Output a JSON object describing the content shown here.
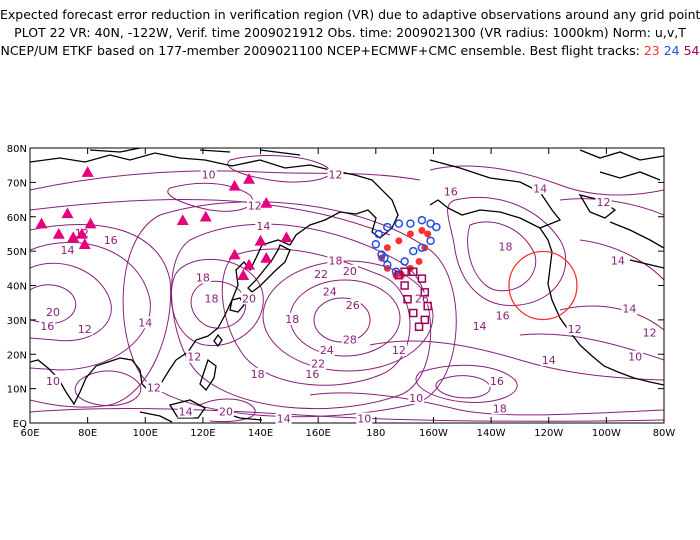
{
  "header": {
    "line1": "Expected forecast error reduction in verification region (VR) due to adaptive observations around any grid point.",
    "line2": "PLOT 22 VR: 40N, -122W, Verif. time 2009021912 Obs. time: 2009021300 (VR radius: 1000km) Norm: u,v,T",
    "line3_text": "NCEP/UM ETKF based on 177-member 2009021100 NCEP+ECMWF+CMC ensemble. Best flight tracks:",
    "track_ids": [
      "23",
      "24",
      "54"
    ]
  },
  "axes": {
    "lat_labels": [
      "80N",
      "70N",
      "60N",
      "50N",
      "40N",
      "30N",
      "20N",
      "10N",
      "EQ"
    ],
    "lon_labels": [
      "60E",
      "80E",
      "100E",
      "120E",
      "140E",
      "160E",
      "180",
      "160W",
      "140W",
      "120W",
      "100W",
      "80W"
    ]
  },
  "map_data": {
    "lon_range": [
      60,
      280
    ],
    "lat_range": [
      0,
      80
    ],
    "contour_values": [
      "10",
      "12",
      "14",
      "16",
      "18",
      "20",
      "22",
      "24",
      "26",
      "28"
    ],
    "contour_labels": [
      {
        "text": "10",
        "lon": 122,
        "lat": 72
      },
      {
        "text": "12",
        "lon": 138,
        "lat": 63
      },
      {
        "text": "14",
        "lon": 141,
        "lat": 57
      },
      {
        "text": "12",
        "lon": 78,
        "lat": 55
      },
      {
        "text": "16",
        "lon": 88,
        "lat": 53
      },
      {
        "text": "14",
        "lon": 73,
        "lat": 50
      },
      {
        "text": "18",
        "lon": 120,
        "lat": 42
      },
      {
        "text": "18",
        "lon": 123,
        "lat": 36
      },
      {
        "text": "20",
        "lon": 136,
        "lat": 36
      },
      {
        "text": "20",
        "lon": 68,
        "lat": 32
      },
      {
        "text": "16",
        "lon": 66,
        "lat": 28
      },
      {
        "text": "12",
        "lon": 79,
        "lat": 27
      },
      {
        "text": "14",
        "lon": 100,
        "lat": 29
      },
      {
        "text": "12",
        "lon": 117,
        "lat": 19
      },
      {
        "text": "10",
        "lon": 68,
        "lat": 12
      },
      {
        "text": "12",
        "lon": 103,
        "lat": 10
      },
      {
        "text": "14",
        "lon": 114,
        "lat": 3
      },
      {
        "text": "18",
        "lon": 139,
        "lat": 14
      },
      {
        "text": "20",
        "lon": 128,
        "lat": 3
      },
      {
        "text": "14",
        "lon": 148,
        "lat": 1
      },
      {
        "text": "18",
        "lon": 151,
        "lat": 30
      },
      {
        "text": "22",
        "lon": 161,
        "lat": 43
      },
      {
        "text": "24",
        "lon": 164,
        "lat": 38
      },
      {
        "text": "26",
        "lon": 172,
        "lat": 34
      },
      {
        "text": "28",
        "lon": 171,
        "lat": 24
      },
      {
        "text": "24",
        "lon": 163,
        "lat": 21
      },
      {
        "text": "22",
        "lon": 160,
        "lat": 17
      },
      {
        "text": "16",
        "lon": 158,
        "lat": 14
      },
      {
        "text": "10",
        "lon": 176,
        "lat": 1
      },
      {
        "text": "18",
        "lon": 166,
        "lat": 47
      },
      {
        "text": "20",
        "lon": 171,
        "lat": 44
      },
      {
        "text": "12",
        "lon": 166,
        "lat": 72
      },
      {
        "text": "16",
        "lon": 206,
        "lat": 67
      },
      {
        "text": "14",
        "lon": 237,
        "lat": 68
      },
      {
        "text": "12",
        "lon": 259,
        "lat": 64
      },
      {
        "text": "18",
        "lon": 225,
        "lat": 51
      },
      {
        "text": "14",
        "lon": 264,
        "lat": 47
      },
      {
        "text": "16",
        "lon": 224,
        "lat": 31
      },
      {
        "text": "14",
        "lon": 216,
        "lat": 28
      },
      {
        "text": "14",
        "lon": 268,
        "lat": 33
      },
      {
        "text": "12",
        "lon": 249,
        "lat": 27
      },
      {
        "text": "12",
        "lon": 188,
        "lat": 21
      },
      {
        "text": "10",
        "lon": 194,
        "lat": 7
      },
      {
        "text": "16",
        "lon": 222,
        "lat": 12
      },
      {
        "text": "14",
        "lon": 240,
        "lat": 18
      },
      {
        "text": "18",
        "lon": 223,
        "lat": 4
      },
      {
        "text": "10",
        "lon": 270,
        "lat": 19
      },
      {
        "text": "26",
        "lon": 196,
        "lat": 36
      },
      {
        "text": "12",
        "lon": 275,
        "lat": 26
      }
    ],
    "triangles": [
      {
        "lon": 64,
        "lat": 58
      },
      {
        "lon": 70,
        "lat": 55
      },
      {
        "lon": 73,
        "lat": 61
      },
      {
        "lon": 75,
        "lat": 54
      },
      {
        "lon": 78,
        "lat": 55
      },
      {
        "lon": 79,
        "lat": 52
      },
      {
        "lon": 81,
        "lat": 58
      },
      {
        "lon": 80,
        "lat": 73
      },
      {
        "lon": 113,
        "lat": 59
      },
      {
        "lon": 121,
        "lat": 60
      },
      {
        "lon": 131,
        "lat": 69
      },
      {
        "lon": 136,
        "lat": 71
      },
      {
        "lon": 142,
        "lat": 64
      },
      {
        "lon": 131,
        "lat": 49
      },
      {
        "lon": 136,
        "lat": 46
      },
      {
        "lon": 134,
        "lat": 43
      },
      {
        "lon": 140,
        "lat": 53
      },
      {
        "lon": 142,
        "lat": 48
      },
      {
        "lon": 149,
        "lat": 54
      }
    ],
    "verification_circle": {
      "lon": 238,
      "lat": 40,
      "radius_label": "1000km"
    },
    "tracks": [
      {
        "id": "23",
        "color": "#ff3030",
        "marker": "filled-circle",
        "points": [
          [
            187,
            43
          ],
          [
            184,
            45
          ],
          [
            182,
            48
          ],
          [
            184,
            51
          ],
          [
            188,
            53
          ],
          [
            192,
            55
          ],
          [
            196,
            56
          ],
          [
            198,
            55
          ],
          [
            197,
            51
          ],
          [
            195,
            47
          ],
          [
            192,
            45
          ],
          [
            189,
            43
          ]
        ]
      },
      {
        "id": "24",
        "color": "#2050e0",
        "marker": "open-circle",
        "points": [
          [
            182,
            49
          ],
          [
            180,
            52
          ],
          [
            181,
            55
          ],
          [
            184,
            57
          ],
          [
            188,
            58
          ],
          [
            192,
            58
          ],
          [
            196,
            59
          ],
          [
            199,
            58
          ],
          [
            201,
            57
          ],
          [
            199,
            53
          ],
          [
            196,
            51
          ],
          [
            193,
            50
          ],
          [
            190,
            47
          ],
          [
            187,
            44
          ],
          [
            184,
            46
          ],
          [
            183,
            48
          ]
        ]
      },
      {
        "id": "54",
        "color": "#a0005a",
        "marker": "open-square",
        "points": [
          [
            188,
            43
          ],
          [
            190,
            40
          ],
          [
            191,
            36
          ],
          [
            193,
            32
          ],
          [
            195,
            28
          ],
          [
            197,
            30
          ],
          [
            198,
            34
          ],
          [
            197,
            38
          ],
          [
            196,
            42
          ],
          [
            193,
            44
          ],
          [
            190,
            44
          ]
        ]
      }
    ]
  },
  "colors": {
    "contour": "#8a1f7a",
    "coast": "#000000",
    "triangle": "#e6007e",
    "circle": "#ff3030",
    "track_23": "#ff3030",
    "track_24": "#2050e0",
    "track_54": "#a0005a"
  }
}
